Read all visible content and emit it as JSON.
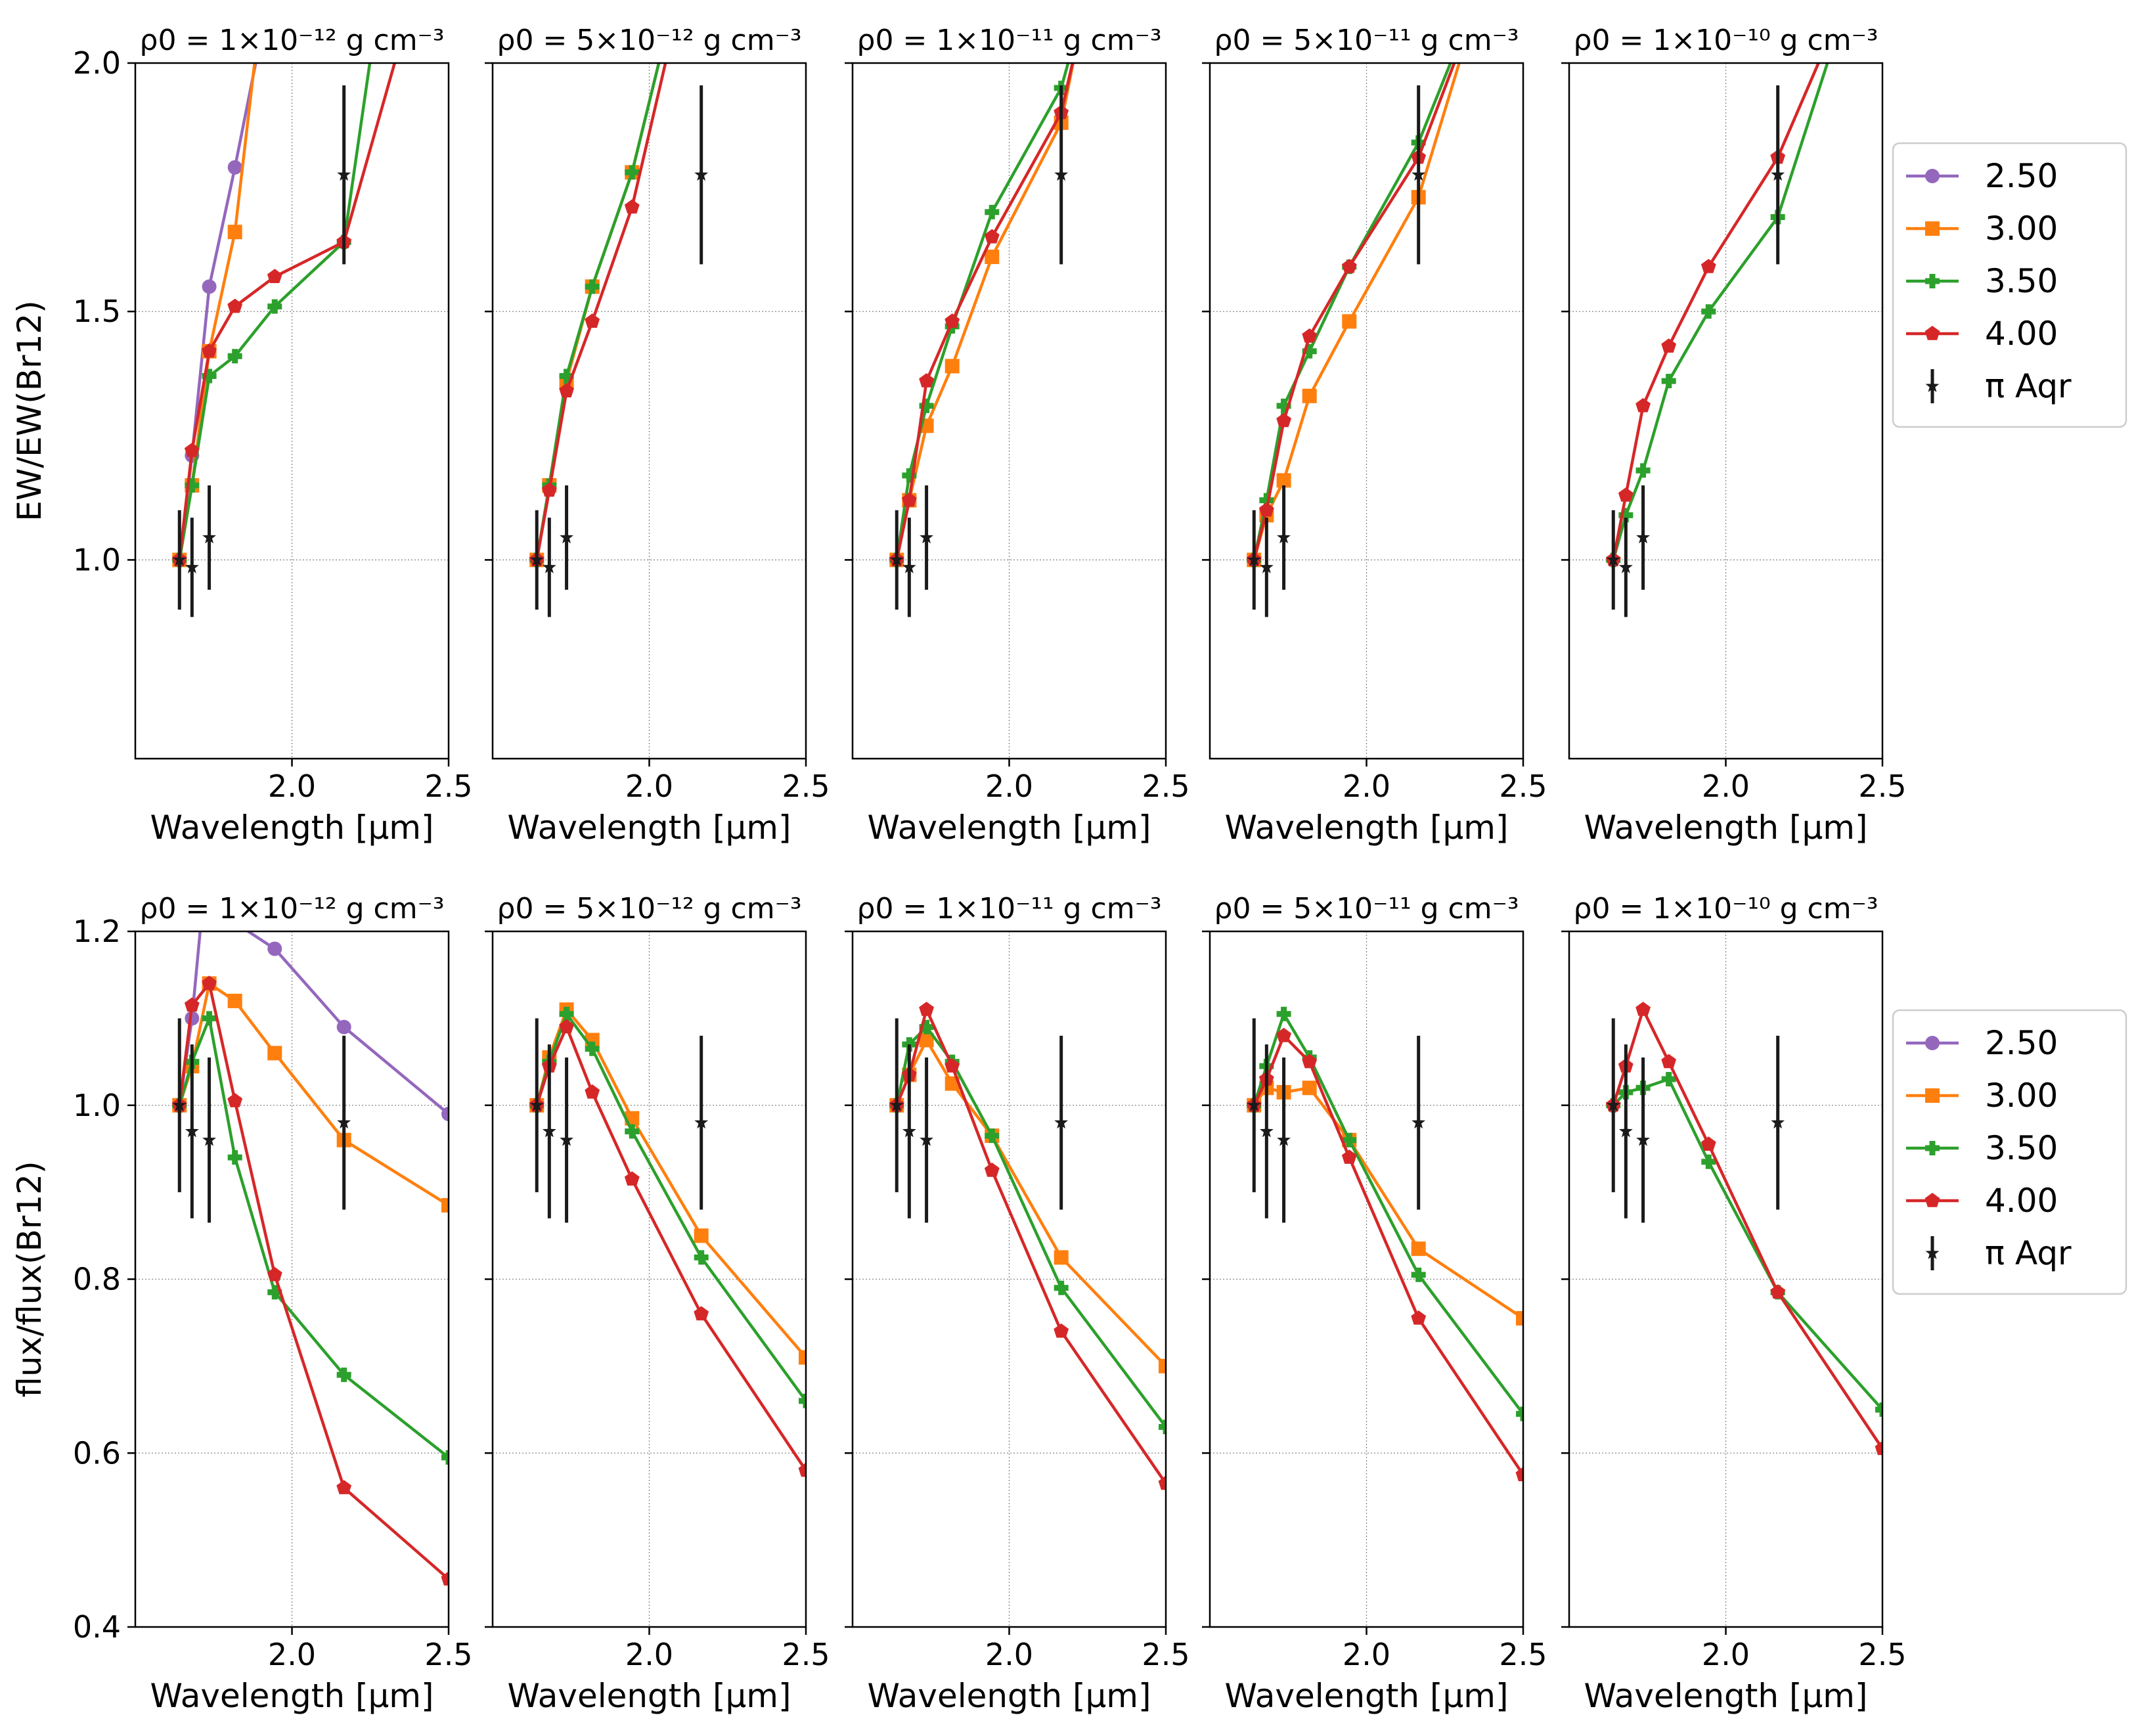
{
  "colors": {
    "s2_50": "#9467bd",
    "s3_00": "#ff7f0e",
    "s3_50": "#2ca02c",
    "s4_00": "#d62728",
    "obs": "#1a1a1a",
    "grid": "#888888"
  },
  "icons": {
    "s2_50": "circle-marker",
    "s3_00": "square-marker",
    "s3_50": "plus-marker",
    "s4_00": "pentagon-marker",
    "obs": "star-marker"
  },
  "legend": {
    "items": [
      {
        "label": "2.50",
        "key": "s2_50"
      },
      {
        "label": "3.00",
        "key": "s3_00"
      },
      {
        "label": "3.50",
        "key": "s3_50"
      },
      {
        "label": "4.00",
        "key": "s4_00"
      },
      {
        "label": "π Aqr",
        "key": "obs"
      }
    ]
  },
  "chart_data": [
    {
      "type": "line",
      "row": 0,
      "col": 0,
      "title": "ρ0 = 1×10⁻¹² g cm⁻³",
      "xlabel": "Wavelength [μm]",
      "ylabel": "EW/EW(Br12)",
      "xlim": [
        1.5,
        2.5
      ],
      "ylim": [
        0.6,
        2.0
      ],
      "xticks": [
        "2.0",
        "2.5"
      ],
      "yticks": [
        "1.0",
        "1.5",
        "2.0"
      ],
      "series": [
        {
          "name": "2.50",
          "key": "s2_50",
          "x": [
            1.641,
            1.681,
            1.736,
            1.818,
            1.9
          ],
          "y": [
            1.0,
            1.21,
            1.55,
            1.79,
            2.05
          ]
        },
        {
          "name": "3.00",
          "key": "s3_00",
          "x": [
            1.641,
            1.681,
            1.736,
            1.818,
            1.89
          ],
          "y": [
            1.0,
            1.15,
            1.42,
            1.66,
            2.05
          ]
        },
        {
          "name": "3.50",
          "key": "s3_50",
          "x": [
            1.641,
            1.681,
            1.736,
            1.818,
            1.945,
            2.166,
            2.26
          ],
          "y": [
            1.0,
            1.15,
            1.37,
            1.41,
            1.51,
            1.64,
            2.05
          ]
        },
        {
          "name": "4.00",
          "key": "s4_00",
          "x": [
            1.641,
            1.681,
            1.736,
            1.818,
            1.945,
            2.166,
            2.35
          ],
          "y": [
            1.0,
            1.22,
            1.42,
            1.51,
            1.57,
            1.64,
            2.05
          ]
        }
      ],
      "observed": {
        "name": "π Aqr",
        "x": [
          1.641,
          1.681,
          1.736,
          2.166
        ],
        "y": [
          1.0,
          0.985,
          1.045,
          1.775
        ],
        "err": [
          0.1,
          0.1,
          0.105,
          0.18
        ]
      }
    },
    {
      "type": "line",
      "row": 0,
      "col": 1,
      "title": "ρ0 = 5×10⁻¹² g cm⁻³",
      "xlabel": "Wavelength [μm]",
      "ylabel": "",
      "xlim": [
        1.5,
        2.5
      ],
      "ylim": [
        0.6,
        2.0
      ],
      "xticks": [
        "2.0",
        "2.5"
      ],
      "yticks": [],
      "series": [
        {
          "name": "3.00",
          "key": "s3_00",
          "x": [
            1.641,
            1.681,
            1.736,
            1.818,
            1.945,
            2.05
          ],
          "y": [
            1.0,
            1.15,
            1.36,
            1.55,
            1.78,
            2.05
          ]
        },
        {
          "name": "3.50",
          "key": "s3_50",
          "x": [
            1.641,
            1.681,
            1.736,
            1.818,
            1.945,
            2.05
          ],
          "y": [
            1.0,
            1.15,
            1.37,
            1.55,
            1.78,
            2.05
          ]
        },
        {
          "name": "4.00",
          "key": "s4_00",
          "x": [
            1.641,
            1.681,
            1.736,
            1.818,
            1.945,
            2.07
          ],
          "y": [
            1.0,
            1.14,
            1.34,
            1.48,
            1.71,
            2.05
          ]
        }
      ],
      "observed": {
        "name": "π Aqr",
        "x": [
          1.641,
          1.681,
          1.736,
          2.166
        ],
        "y": [
          1.0,
          0.985,
          1.045,
          1.775
        ],
        "err": [
          0.1,
          0.1,
          0.105,
          0.18
        ]
      }
    },
    {
      "type": "line",
      "row": 0,
      "col": 2,
      "title": "ρ0 = 1×10⁻¹¹ g cm⁻³",
      "xlabel": "Wavelength [μm]",
      "ylabel": "",
      "xlim": [
        1.5,
        2.5
      ],
      "ylim": [
        0.6,
        2.0
      ],
      "xticks": [
        "2.0",
        "2.5"
      ],
      "yticks": [],
      "series": [
        {
          "name": "3.00",
          "key": "s3_00",
          "x": [
            1.641,
            1.681,
            1.736,
            1.818,
            1.945,
            2.166,
            2.22
          ],
          "y": [
            1.0,
            1.12,
            1.27,
            1.39,
            1.61,
            1.88,
            2.05
          ]
        },
        {
          "name": "3.50",
          "key": "s3_50",
          "x": [
            1.641,
            1.681,
            1.736,
            1.818,
            1.945,
            2.166,
            2.21
          ],
          "y": [
            1.0,
            1.17,
            1.31,
            1.47,
            1.7,
            1.95,
            2.05
          ]
        },
        {
          "name": "4.00",
          "key": "s4_00",
          "x": [
            1.641,
            1.681,
            1.736,
            1.818,
            1.945,
            2.166,
            2.22
          ],
          "y": [
            1.0,
            1.12,
            1.36,
            1.48,
            1.65,
            1.9,
            2.05
          ]
        }
      ],
      "observed": {
        "name": "π Aqr",
        "x": [
          1.641,
          1.681,
          1.736,
          2.166
        ],
        "y": [
          1.0,
          0.985,
          1.045,
          1.775
        ],
        "err": [
          0.1,
          0.1,
          0.105,
          0.18
        ]
      }
    },
    {
      "type": "line",
      "row": 0,
      "col": 3,
      "title": "ρ0 = 5×10⁻¹¹ g cm⁻³",
      "xlabel": "Wavelength [μm]",
      "ylabel": "",
      "xlim": [
        1.5,
        2.5
      ],
      "ylim": [
        0.6,
        2.0
      ],
      "xticks": [
        "2.0",
        "2.5"
      ],
      "yticks": [],
      "series": [
        {
          "name": "3.00",
          "key": "s3_00",
          "x": [
            1.641,
            1.681,
            1.736,
            1.818,
            1.945,
            2.166,
            2.32
          ],
          "y": [
            1.0,
            1.09,
            1.16,
            1.33,
            1.48,
            1.73,
            2.05
          ]
        },
        {
          "name": "3.50",
          "key": "s3_50",
          "x": [
            1.641,
            1.681,
            1.736,
            1.818,
            1.945,
            2.166,
            2.3
          ],
          "y": [
            1.0,
            1.12,
            1.31,
            1.42,
            1.59,
            1.84,
            2.05
          ]
        },
        {
          "name": "4.00",
          "key": "s4_00",
          "x": [
            1.641,
            1.681,
            1.736,
            1.818,
            1.945,
            2.166,
            2.31
          ],
          "y": [
            1.0,
            1.1,
            1.28,
            1.45,
            1.59,
            1.81,
            2.05
          ]
        }
      ],
      "observed": {
        "name": "π Aqr",
        "x": [
          1.641,
          1.681,
          1.736,
          2.166
        ],
        "y": [
          1.0,
          0.985,
          1.045,
          1.775
        ],
        "err": [
          0.1,
          0.1,
          0.105,
          0.18
        ]
      }
    },
    {
      "type": "line",
      "row": 0,
      "col": 4,
      "title": "ρ0 = 1×10⁻¹⁰ g cm⁻³",
      "xlabel": "Wavelength [μm]",
      "ylabel": "",
      "xlim": [
        1.5,
        2.5
      ],
      "ylim": [
        0.6,
        2.0
      ],
      "xticks": [
        "2.0",
        "2.5"
      ],
      "yticks": [],
      "series": [
        {
          "name": "3.50",
          "key": "s3_50",
          "x": [
            1.641,
            1.681,
            1.736,
            1.818,
            1.945,
            2.166,
            2.35
          ],
          "y": [
            1.0,
            1.09,
            1.18,
            1.36,
            1.5,
            1.69,
            2.05
          ]
        },
        {
          "name": "4.00",
          "key": "s4_00",
          "x": [
            1.641,
            1.681,
            1.736,
            1.818,
            1.945,
            2.166,
            2.33
          ],
          "y": [
            1.0,
            1.13,
            1.31,
            1.43,
            1.59,
            1.81,
            2.05
          ]
        }
      ],
      "observed": {
        "name": "π Aqr",
        "x": [
          1.641,
          1.681,
          1.736,
          2.166
        ],
        "y": [
          1.0,
          0.985,
          1.045,
          1.775
        ],
        "err": [
          0.1,
          0.1,
          0.105,
          0.18
        ]
      }
    },
    {
      "type": "line",
      "row": 1,
      "col": 0,
      "title": "ρ0 = 1×10⁻¹² g cm⁻³",
      "xlabel": "Wavelength [μm]",
      "ylabel": "flux/flux(Br12)",
      "xlim": [
        1.5,
        2.5
      ],
      "ylim": [
        0.4,
        1.2
      ],
      "xticks": [
        "2.0",
        "2.5"
      ],
      "yticks": [
        "0.4",
        "0.6",
        "0.8",
        "1.0",
        "1.2"
      ],
      "series": [
        {
          "name": "2.50",
          "key": "s2_50",
          "x": [
            1.641,
            1.681,
            1.72,
            1.818,
            1.945,
            2.166,
            2.5
          ],
          "y": [
            1.0,
            1.1,
            1.25,
            1.21,
            1.18,
            1.09,
            0.99
          ]
        },
        {
          "name": "3.00",
          "key": "s3_00",
          "x": [
            1.641,
            1.681,
            1.736,
            1.818,
            1.945,
            2.166,
            2.5
          ],
          "y": [
            1.0,
            1.045,
            1.14,
            1.12,
            1.06,
            0.96,
            0.885
          ]
        },
        {
          "name": "3.50",
          "key": "s3_50",
          "x": [
            1.641,
            1.681,
            1.736,
            1.818,
            1.945,
            2.166,
            2.5
          ],
          "y": [
            1.0,
            1.05,
            1.1,
            0.94,
            0.785,
            0.69,
            0.595
          ]
        },
        {
          "name": "4.00",
          "key": "s4_00",
          "x": [
            1.641,
            1.681,
            1.736,
            1.818,
            1.945,
            2.166,
            2.5
          ],
          "y": [
            1.0,
            1.115,
            1.14,
            1.005,
            0.805,
            0.56,
            0.455
          ]
        }
      ],
      "observed": {
        "name": "π Aqr",
        "x": [
          1.641,
          1.681,
          1.736,
          2.166
        ],
        "y": [
          1.0,
          0.97,
          0.96,
          0.98
        ],
        "err": [
          0.1,
          0.1,
          0.095,
          0.1
        ]
      }
    },
    {
      "type": "line",
      "row": 1,
      "col": 1,
      "title": "ρ0 = 5×10⁻¹² g cm⁻³",
      "xlabel": "Wavelength [μm]",
      "ylabel": "",
      "xlim": [
        1.5,
        2.5
      ],
      "ylim": [
        0.4,
        1.2
      ],
      "xticks": [
        "2.0",
        "2.5"
      ],
      "yticks": [],
      "series": [
        {
          "name": "3.00",
          "key": "s3_00",
          "x": [
            1.641,
            1.681,
            1.736,
            1.818,
            1.945,
            2.166,
            2.5
          ],
          "y": [
            1.0,
            1.055,
            1.11,
            1.075,
            0.985,
            0.85,
            0.71
          ]
        },
        {
          "name": "3.50",
          "key": "s3_50",
          "x": [
            1.641,
            1.681,
            1.736,
            1.818,
            1.945,
            2.166,
            2.5
          ],
          "y": [
            1.0,
            1.05,
            1.105,
            1.065,
            0.97,
            0.825,
            0.66
          ]
        },
        {
          "name": "4.00",
          "key": "s4_00",
          "x": [
            1.641,
            1.681,
            1.736,
            1.818,
            1.945,
            2.166,
            2.5
          ],
          "y": [
            1.0,
            1.045,
            1.09,
            1.015,
            0.915,
            0.76,
            0.58
          ]
        }
      ],
      "observed": {
        "name": "π Aqr",
        "x": [
          1.641,
          1.681,
          1.736,
          2.166
        ],
        "y": [
          1.0,
          0.97,
          0.96,
          0.98
        ],
        "err": [
          0.1,
          0.1,
          0.095,
          0.1
        ]
      }
    },
    {
      "type": "line",
      "row": 1,
      "col": 2,
      "title": "ρ0 = 1×10⁻¹¹ g cm⁻³",
      "xlabel": "Wavelength [μm]",
      "ylabel": "",
      "xlim": [
        1.5,
        2.5
      ],
      "ylim": [
        0.4,
        1.2
      ],
      "xticks": [
        "2.0",
        "2.5"
      ],
      "yticks": [],
      "series": [
        {
          "name": "3.00",
          "key": "s3_00",
          "x": [
            1.641,
            1.681,
            1.736,
            1.818,
            1.945,
            2.166,
            2.5
          ],
          "y": [
            1.0,
            1.035,
            1.075,
            1.025,
            0.965,
            0.825,
            0.7
          ]
        },
        {
          "name": "3.50",
          "key": "s3_50",
          "x": [
            1.641,
            1.681,
            1.736,
            1.818,
            1.945,
            2.166,
            2.5
          ],
          "y": [
            1.0,
            1.07,
            1.09,
            1.05,
            0.965,
            0.79,
            0.63
          ]
        },
        {
          "name": "4.00",
          "key": "s4_00",
          "x": [
            1.641,
            1.681,
            1.736,
            1.818,
            1.945,
            2.166,
            2.5
          ],
          "y": [
            1.0,
            1.035,
            1.11,
            1.045,
            0.925,
            0.74,
            0.565
          ]
        }
      ],
      "observed": {
        "name": "π Aqr",
        "x": [
          1.641,
          1.681,
          1.736,
          2.166
        ],
        "y": [
          1.0,
          0.97,
          0.96,
          0.98
        ],
        "err": [
          0.1,
          0.1,
          0.095,
          0.1
        ]
      }
    },
    {
      "type": "line",
      "row": 1,
      "col": 3,
      "title": "ρ0 = 5×10⁻¹¹ g cm⁻³",
      "xlabel": "Wavelength [μm]",
      "ylabel": "",
      "xlim": [
        1.5,
        2.5
      ],
      "ylim": [
        0.4,
        1.2
      ],
      "xticks": [
        "2.0",
        "2.5"
      ],
      "yticks": [],
      "series": [
        {
          "name": "3.00",
          "key": "s3_00",
          "x": [
            1.641,
            1.681,
            1.736,
            1.818,
            1.945,
            2.166,
            2.5
          ],
          "y": [
            1.0,
            1.02,
            1.015,
            1.02,
            0.96,
            0.835,
            0.755
          ]
        },
        {
          "name": "3.50",
          "key": "s3_50",
          "x": [
            1.641,
            1.681,
            1.736,
            1.818,
            1.945,
            2.166,
            2.5
          ],
          "y": [
            1.0,
            1.045,
            1.105,
            1.055,
            0.96,
            0.805,
            0.645
          ]
        },
        {
          "name": "4.00",
          "key": "s4_00",
          "x": [
            1.641,
            1.681,
            1.736,
            1.818,
            1.945,
            2.166,
            2.5
          ],
          "y": [
            1.0,
            1.03,
            1.08,
            1.05,
            0.94,
            0.755,
            0.575
          ]
        }
      ],
      "observed": {
        "name": "π Aqr",
        "x": [
          1.641,
          1.681,
          1.736,
          2.166
        ],
        "y": [
          1.0,
          0.97,
          0.96,
          0.98
        ],
        "err": [
          0.1,
          0.1,
          0.095,
          0.1
        ]
      }
    },
    {
      "type": "line",
      "row": 1,
      "col": 4,
      "title": "ρ0 = 1×10⁻¹⁰ g cm⁻³",
      "xlabel": "Wavelength [μm]",
      "ylabel": "",
      "xlim": [
        1.5,
        2.5
      ],
      "ylim": [
        0.4,
        1.2
      ],
      "xticks": [
        "2.0",
        "2.5"
      ],
      "yticks": [],
      "series": [
        {
          "name": "3.50",
          "key": "s3_50",
          "x": [
            1.641,
            1.681,
            1.736,
            1.818,
            1.945,
            2.166,
            2.5
          ],
          "y": [
            1.0,
            1.015,
            1.02,
            1.03,
            0.935,
            0.785,
            0.65
          ]
        },
        {
          "name": "4.00",
          "key": "s4_00",
          "x": [
            1.641,
            1.681,
            1.736,
            1.818,
            1.945,
            2.166,
            2.5
          ],
          "y": [
            1.0,
            1.045,
            1.11,
            1.05,
            0.955,
            0.785,
            0.605
          ]
        }
      ],
      "observed": {
        "name": "π Aqr",
        "x": [
          1.641,
          1.681,
          1.736,
          2.166
        ],
        "y": [
          1.0,
          0.97,
          0.96,
          0.98
        ],
        "err": [
          0.1,
          0.1,
          0.095,
          0.1
        ]
      }
    }
  ]
}
